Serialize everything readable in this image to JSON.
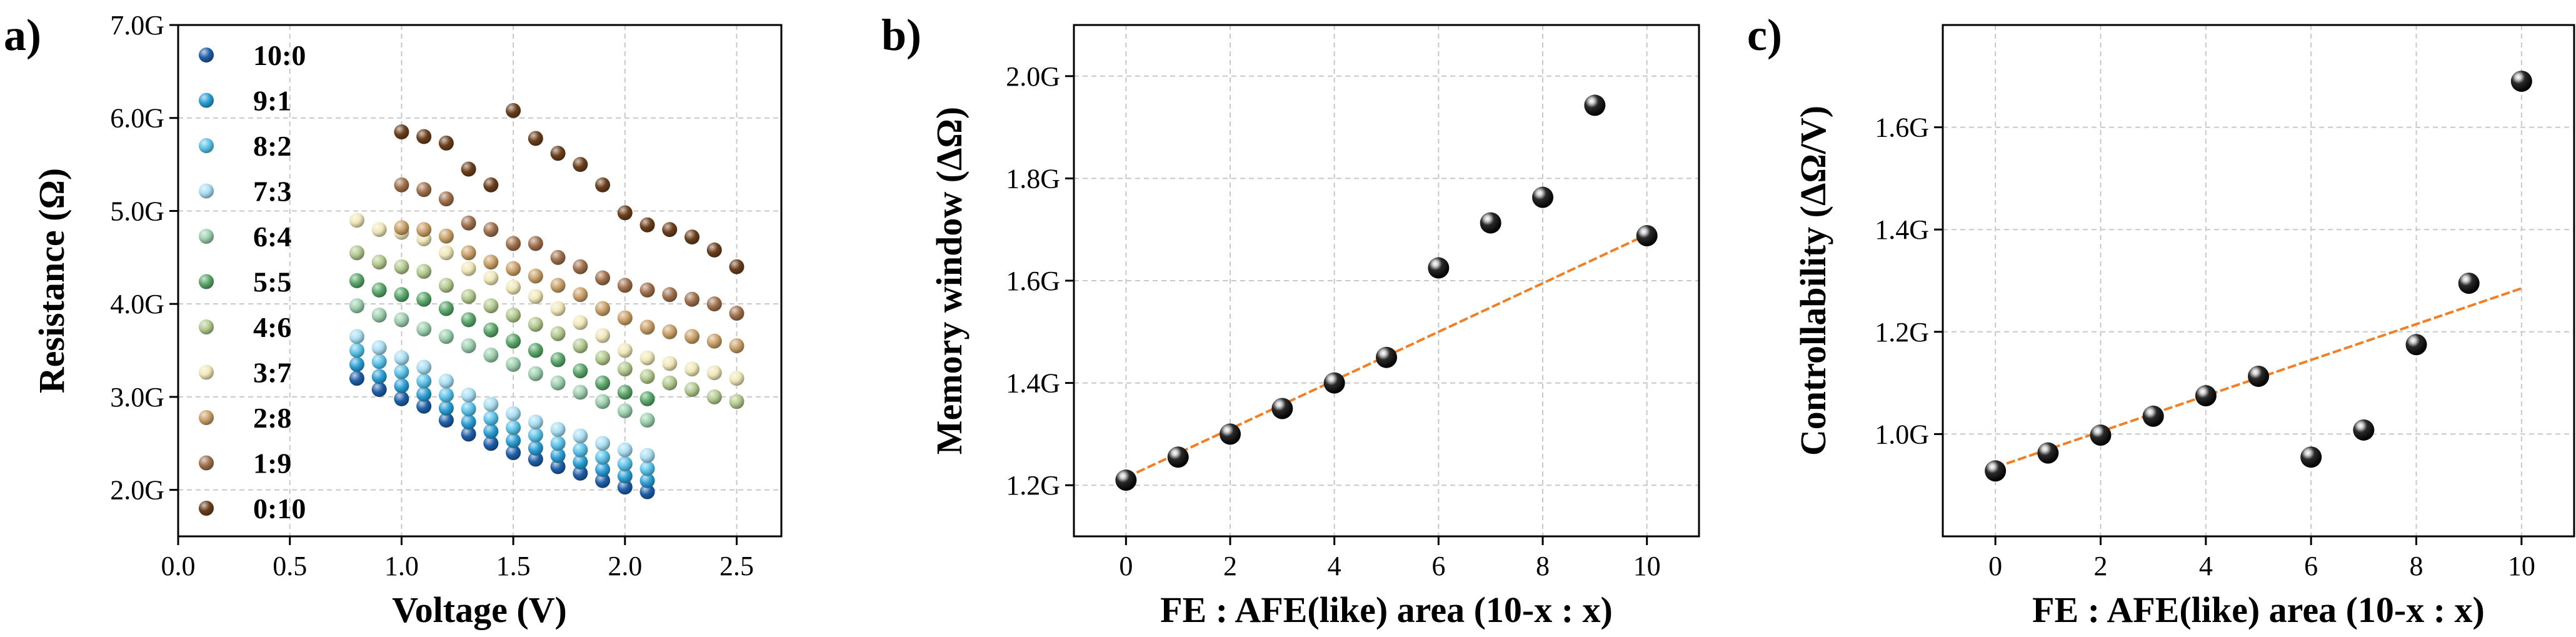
{
  "chart_data": [
    {
      "id": "a",
      "type": "scatter",
      "panel_label": "a)",
      "xlabel": "Voltage (V)",
      "ylabel": "Resistance (Ω)",
      "xlim": [
        0.0,
        2.7
      ],
      "ylim": [
        1.5,
        7.0
      ],
      "xticks": [
        0.0,
        0.5,
        1.0,
        1.5,
        2.0,
        2.5
      ],
      "xtick_labels": [
        "0.0",
        "0.5",
        "1.0",
        "1.5",
        "2.0",
        "2.5"
      ],
      "yticks": [
        2.0,
        3.0,
        4.0,
        5.0,
        6.0,
        7.0
      ],
      "ytick_labels": [
        "2.0G",
        "3.0G",
        "4.0G",
        "5.0G",
        "6.0G",
        "7.0G"
      ],
      "grid": true,
      "legend_position": "top-left",
      "series": [
        {
          "name": "10:0",
          "color": "#1f5fa8",
          "x": [
            0.8,
            0.9,
            1.0,
            1.1,
            1.2,
            1.3,
            1.4,
            1.5,
            1.6,
            1.7,
            1.8,
            1.9,
            2.0,
            2.1
          ],
          "y": [
            3.2,
            3.08,
            2.98,
            2.9,
            2.75,
            2.6,
            2.5,
            2.4,
            2.33,
            2.25,
            2.18,
            2.1,
            2.03,
            1.98
          ]
        },
        {
          "name": "9:1",
          "color": "#2c9fd6",
          "x": [
            0.8,
            0.9,
            1.0,
            1.1,
            1.2,
            1.3,
            1.4,
            1.5,
            1.6,
            1.7,
            1.8,
            1.9,
            2.0,
            2.1
          ],
          "y": [
            3.35,
            3.22,
            3.12,
            3.03,
            2.88,
            2.73,
            2.63,
            2.53,
            2.45,
            2.37,
            2.3,
            2.22,
            2.15,
            2.1
          ]
        },
        {
          "name": "8:2",
          "color": "#5cc3ea",
          "x": [
            0.8,
            0.9,
            1.0,
            1.1,
            1.2,
            1.3,
            1.4,
            1.5,
            1.6,
            1.7,
            1.8,
            1.9,
            2.0,
            2.1
          ],
          "y": [
            3.5,
            3.38,
            3.27,
            3.17,
            3.02,
            2.87,
            2.77,
            2.67,
            2.59,
            2.5,
            2.43,
            2.35,
            2.28,
            2.23
          ]
        },
        {
          "name": "7:3",
          "color": "#a9def2",
          "x": [
            0.8,
            0.9,
            1.0,
            1.1,
            1.2,
            1.3,
            1.4,
            1.5,
            1.6,
            1.7,
            1.8,
            1.9,
            2.0,
            2.1
          ],
          "y": [
            3.65,
            3.53,
            3.42,
            3.32,
            3.17,
            3.02,
            2.92,
            2.82,
            2.73,
            2.65,
            2.58,
            2.5,
            2.43,
            2.37
          ]
        },
        {
          "name": "6:4",
          "color": "#9ccfae",
          "x": [
            0.8,
            0.9,
            1.0,
            1.1,
            1.2,
            1.3,
            1.4,
            1.5,
            1.6,
            1.7,
            1.8,
            1.9,
            2.0,
            2.1
          ],
          "y": [
            3.98,
            3.88,
            3.83,
            3.73,
            3.65,
            3.55,
            3.45,
            3.35,
            3.25,
            3.15,
            3.05,
            2.95,
            2.85,
            2.75
          ]
        },
        {
          "name": "5:5",
          "color": "#5aa76a",
          "x": [
            0.8,
            0.9,
            1.0,
            1.1,
            1.2,
            1.3,
            1.4,
            1.5,
            1.6,
            1.7,
            1.8,
            1.9,
            2.0,
            2.1
          ],
          "y": [
            4.25,
            4.15,
            4.1,
            4.05,
            3.95,
            3.83,
            3.72,
            3.6,
            3.5,
            3.4,
            3.28,
            3.15,
            3.05,
            2.98
          ]
        },
        {
          "name": "4:6",
          "color": "#b3c98e",
          "x": [
            0.8,
            0.9,
            1.0,
            1.1,
            1.2,
            1.3,
            1.4,
            1.5,
            1.6,
            1.7,
            1.8,
            1.9,
            2.0,
            2.1,
            2.2,
            2.3,
            2.4,
            2.5
          ],
          "y": [
            4.55,
            4.45,
            4.4,
            4.35,
            4.2,
            4.08,
            3.98,
            3.88,
            3.78,
            3.68,
            3.55,
            3.42,
            3.3,
            3.22,
            3.15,
            3.08,
            3.0,
            2.95
          ]
        },
        {
          "name": "3:7",
          "color": "#efe7b8",
          "x": [
            0.8,
            0.9,
            1.0,
            1.1,
            1.2,
            1.3,
            1.4,
            1.5,
            1.6,
            1.7,
            1.8,
            1.9,
            2.0,
            2.1,
            2.2,
            2.3,
            2.4,
            2.5
          ],
          "y": [
            4.9,
            4.8,
            4.77,
            4.7,
            4.55,
            4.38,
            4.28,
            4.18,
            4.08,
            3.95,
            3.8,
            3.66,
            3.5,
            3.42,
            3.36,
            3.3,
            3.26,
            3.2
          ]
        },
        {
          "name": "2:8",
          "color": "#c9a068",
          "x": [
            1.0,
            1.1,
            1.2,
            1.3,
            1.4,
            1.5,
            1.6,
            1.7,
            1.8,
            1.9,
            2.0,
            2.1,
            2.2,
            2.3,
            2.4,
            2.5
          ],
          "y": [
            4.82,
            4.8,
            4.73,
            4.55,
            4.45,
            4.38,
            4.3,
            4.2,
            4.1,
            3.95,
            3.85,
            3.75,
            3.7,
            3.65,
            3.6,
            3.55
          ]
        },
        {
          "name": "1:9",
          "color": "#a0714d",
          "x": [
            1.0,
            1.1,
            1.2,
            1.3,
            1.4,
            1.5,
            1.6,
            1.7,
            1.8,
            1.9,
            2.0,
            2.1,
            2.2,
            2.3,
            2.4,
            2.5
          ],
          "y": [
            5.28,
            5.23,
            5.13,
            4.87,
            4.8,
            4.65,
            4.65,
            4.5,
            4.4,
            4.28,
            4.2,
            4.15,
            4.1,
            4.05,
            4.0,
            3.9
          ]
        },
        {
          "name": "0:10",
          "color": "#6b3f1c",
          "x": [
            1.0,
            1.1,
            1.2,
            1.3,
            1.4,
            1.5,
            1.6,
            1.7,
            1.8,
            1.9,
            2.0,
            2.1,
            2.2,
            2.3,
            2.4,
            2.5
          ],
          "y": [
            5.85,
            5.8,
            5.73,
            5.45,
            5.28,
            6.08,
            5.78,
            5.62,
            5.5,
            5.28,
            4.98,
            4.85,
            4.8,
            4.72,
            4.58,
            4.4
          ]
        }
      ],
      "legend_entries": [
        "10:0",
        "9:1",
        "8:2",
        "7:3",
        "6:4",
        "5:5",
        "4:6",
        "3:7",
        "2:8",
        "1:9",
        "0:10"
      ]
    },
    {
      "id": "b",
      "type": "scatter",
      "panel_label": "b)",
      "xlabel": "FE : AFE(like) area (10-x : x)",
      "ylabel": "Memory window (ΔΩ)",
      "xlim": [
        -1,
        11
      ],
      "ylim": [
        1.1,
        2.1
      ],
      "xticks": [
        0,
        2,
        4,
        6,
        8,
        10
      ],
      "xtick_labels": [
        "0",
        "2",
        "4",
        "6",
        "8",
        "10"
      ],
      "yticks": [
        1.2,
        1.4,
        1.6,
        1.8,
        2.0
      ],
      "ytick_labels": [
        "1.2G",
        "1.4G",
        "1.6G",
        "1.8G",
        "2.0G"
      ],
      "grid": true,
      "x": [
        0,
        1,
        2,
        3,
        4,
        5,
        6,
        7,
        8,
        9,
        10
      ],
      "values": [
        1.21,
        1.255,
        1.3,
        1.35,
        1.4,
        1.45,
        1.625,
        1.713,
        1.763,
        1.943,
        1.688
      ],
      "fit_line": {
        "x": [
          0,
          10
        ],
        "y": [
          1.215,
          1.69
        ],
        "color": "#f07f27"
      }
    },
    {
      "id": "c",
      "type": "scatter",
      "panel_label": "c)",
      "xlabel": "FE : AFE(like) area (10-x : x)",
      "ylabel": "Controllability (ΔΩ/V)",
      "xlim": [
        -1,
        11
      ],
      "ylim": [
        0.8,
        1.8
      ],
      "xticks": [
        0,
        2,
        4,
        6,
        8,
        10
      ],
      "xtick_labels": [
        "0",
        "2",
        "4",
        "6",
        "8",
        "10"
      ],
      "yticks": [
        1.0,
        1.2,
        1.4,
        1.6
      ],
      "ytick_labels": [
        "1.0G",
        "1.2G",
        "1.4G",
        "1.6G"
      ],
      "grid": true,
      "x": [
        0,
        1,
        2,
        3,
        4,
        5,
        6,
        7,
        8,
        9,
        10
      ],
      "values": [
        0.928,
        0.963,
        0.998,
        1.035,
        1.075,
        1.113,
        0.955,
        1.008,
        1.175,
        1.295,
        1.69
      ],
      "fit_line": {
        "x": [
          0,
          10
        ],
        "y": [
          0.935,
          1.285
        ],
        "color": "#f07f27"
      }
    }
  ]
}
